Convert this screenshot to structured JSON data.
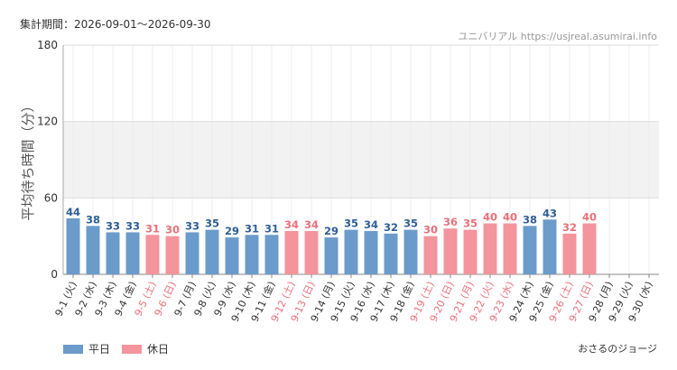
{
  "header": {
    "period": "集計期間：2026-09-01～2026-09-30",
    "source": "ユニバリアル  https://usjreal.asumirai.info"
  },
  "footer": {
    "credit": "おさるのジョージ"
  },
  "colors": {
    "weekday": "#6b9bca",
    "holiday": "#f4949c",
    "weekday_label": "#2f5f96",
    "holiday_label": "#e8707a",
    "band": "#f2f2f2"
  },
  "chart_data": {
    "type": "bar",
    "ylabel": "平均待ち時間（分）",
    "xlabel": "",
    "ylim": [
      0,
      180
    ],
    "yticks": [
      0,
      60,
      120,
      180
    ],
    "shaded_band": [
      60,
      120
    ],
    "grid": true,
    "legend_position": "bottom-left",
    "legend": [
      {
        "name": "平日",
        "color": "#6b9bca"
      },
      {
        "name": "休日",
        "color": "#f4949c"
      }
    ],
    "categories": [
      "9-1 (火)",
      "9-2 (水)",
      "9-3 (木)",
      "9-4 (金)",
      "9-5 (土)",
      "9-6 (日)",
      "9-7 (月)",
      "9-8 (火)",
      "9-9 (水)",
      "9-10 (木)",
      "9-11 (金)",
      "9-12 (土)",
      "9-13 (日)",
      "9-14 (月)",
      "9-15 (火)",
      "9-16 (水)",
      "9-17 (木)",
      "9-18 (金)",
      "9-19 (土)",
      "9-20 (日)",
      "9-21 (月)",
      "9-22 (火)",
      "9-23 (水)",
      "9-24 (木)",
      "9-25 (金)",
      "9-26 (土)",
      "9-27 (日)",
      "9-28 (月)",
      "9-29 (火)",
      "9-30 (水)"
    ],
    "values": [
      44,
      38,
      33,
      33,
      31,
      30,
      33,
      35,
      29,
      31,
      31,
      34,
      34,
      29,
      35,
      34,
      32,
      35,
      30,
      36,
      35,
      40,
      40,
      38,
      43,
      32,
      40,
      null,
      null,
      null
    ],
    "day_type": [
      "平日",
      "平日",
      "平日",
      "平日",
      "休日",
      "休日",
      "平日",
      "平日",
      "平日",
      "平日",
      "平日",
      "休日",
      "休日",
      "平日",
      "平日",
      "平日",
      "平日",
      "平日",
      "休日",
      "休日",
      "休日",
      "休日",
      "休日",
      "平日",
      "平日",
      "休日",
      "休日",
      "平日",
      "平日",
      "平日"
    ]
  }
}
